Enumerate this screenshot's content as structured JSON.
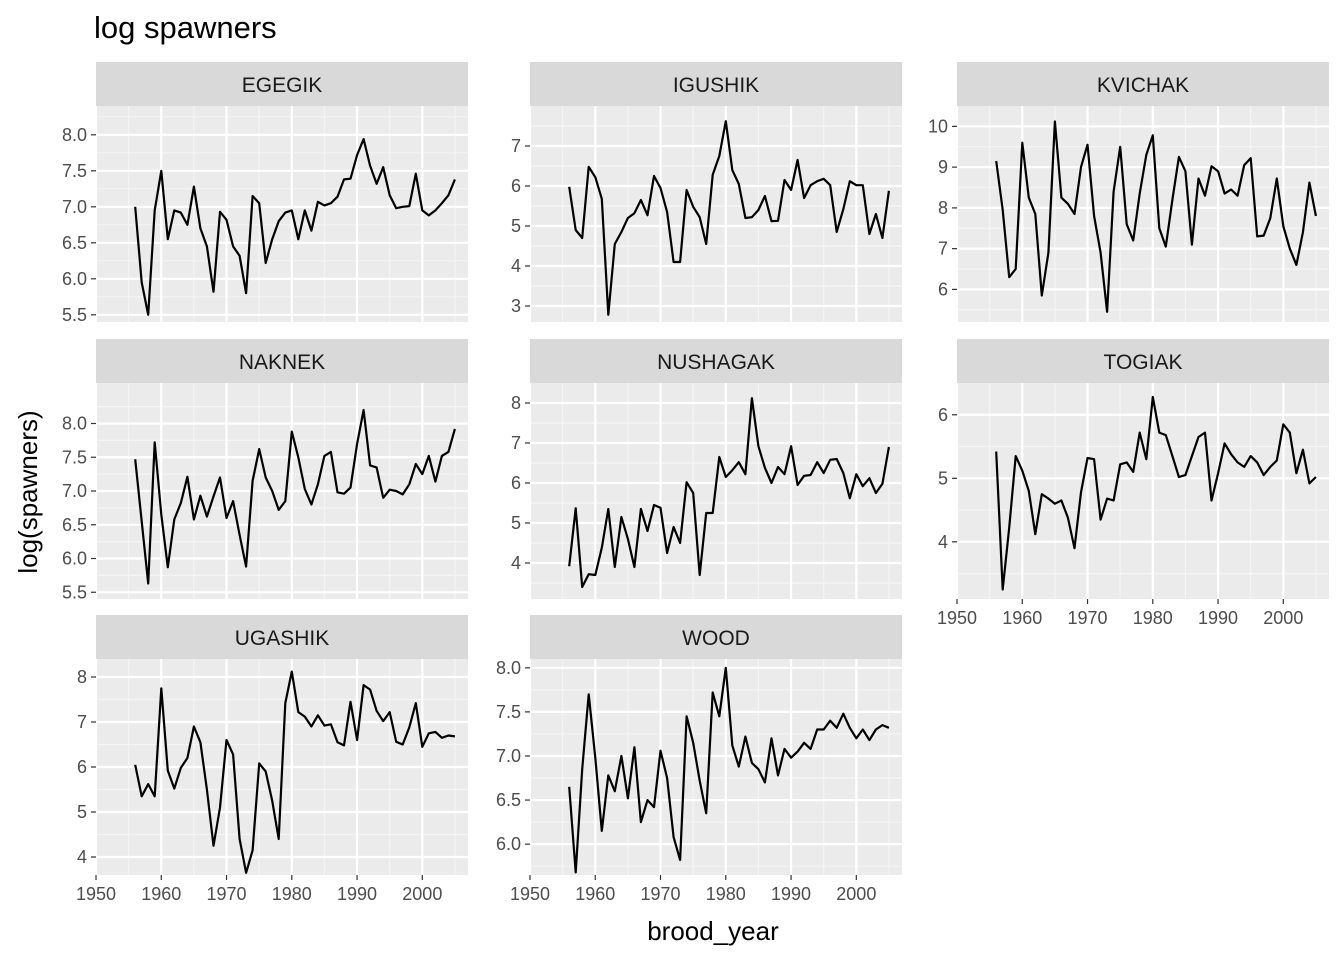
{
  "chart_data": {
    "type": "line",
    "title": "log spawners",
    "xlabel": "brood_year",
    "ylabel": "log(spawners)",
    "xlim": [
      1950,
      2007
    ],
    "x_ticks": [
      "1950",
      "1960",
      "1970",
      "1980",
      "1990",
      "2000"
    ],
    "grid": true,
    "legend": "none",
    "facets": [
      {
        "name": "EGEGIK",
        "ylim": [
          5.4,
          8.4
        ],
        "y_ticks": [
          "5.5",
          "6.0",
          "6.5",
          "7.0",
          "7.5",
          "8.0"
        ],
        "x": [
          1956,
          1957,
          1958,
          1959,
          1960,
          1961,
          1962,
          1963,
          1964,
          1965,
          1966,
          1967,
          1968,
          1969,
          1970,
          1971,
          1972,
          1973,
          1974,
          1975,
          1976,
          1977,
          1978,
          1979,
          1980,
          1981,
          1982,
          1983,
          1984,
          1985,
          1986,
          1987,
          1988,
          1989,
          1990,
          1991,
          1992,
          1993,
          1994,
          1995,
          1996,
          1997,
          1998,
          1999,
          2000,
          2001,
          2002,
          2003,
          2004,
          2005
        ],
        "y": [
          7.0,
          5.95,
          5.5,
          6.95,
          7.5,
          6.55,
          6.95,
          6.92,
          6.75,
          7.28,
          6.7,
          6.45,
          5.82,
          6.93,
          6.82,
          6.45,
          6.32,
          5.8,
          7.15,
          7.05,
          6.22,
          6.55,
          6.8,
          6.92,
          6.95,
          6.55,
          6.95,
          6.67,
          7.07,
          7.02,
          7.05,
          7.14,
          7.38,
          7.39,
          7.72,
          7.94,
          7.57,
          7.32,
          7.55,
          7.16,
          6.98,
          7.0,
          7.01,
          7.46,
          6.95,
          6.88,
          6.95,
          7.05,
          7.16,
          7.38
        ]
      },
      {
        "name": "IGUSHIK",
        "ylim": [
          2.6,
          8.0
        ],
        "y_ticks": [
          "3",
          "4",
          "5",
          "6",
          "7"
        ],
        "x": [
          1956,
          1957,
          1958,
          1959,
          1960,
          1961,
          1962,
          1963,
          1964,
          1965,
          1966,
          1967,
          1968,
          1969,
          1970,
          1971,
          1972,
          1973,
          1974,
          1975,
          1976,
          1977,
          1978,
          1979,
          1980,
          1981,
          1982,
          1983,
          1984,
          1985,
          1986,
          1987,
          1988,
          1989,
          1990,
          1991,
          1992,
          1993,
          1994,
          1995,
          1996,
          1997,
          1998,
          1999,
          2000,
          2001,
          2002,
          2003,
          2004,
          2005
        ],
        "y": [
          5.98,
          4.9,
          4.7,
          6.48,
          6.22,
          5.68,
          2.78,
          4.55,
          4.85,
          5.2,
          5.32,
          5.65,
          5.27,
          6.25,
          5.95,
          5.35,
          4.1,
          4.1,
          5.9,
          5.48,
          5.22,
          4.55,
          6.28,
          6.75,
          7.62,
          6.4,
          6.05,
          5.2,
          5.22,
          5.4,
          5.75,
          5.12,
          5.13,
          6.15,
          5.9,
          6.65,
          5.7,
          6.02,
          6.12,
          6.18,
          6.02,
          4.85,
          5.42,
          6.12,
          6.02,
          6.02,
          4.8,
          5.3,
          4.7,
          5.88
        ]
      },
      {
        "name": "KVICHAK",
        "ylim": [
          5.2,
          10.5
        ],
        "y_ticks": [
          "6",
          "7",
          "8",
          "9",
          "10"
        ],
        "x": [
          1956,
          1957,
          1958,
          1959,
          1960,
          1961,
          1962,
          1963,
          1964,
          1965,
          1966,
          1967,
          1968,
          1969,
          1970,
          1971,
          1972,
          1973,
          1974,
          1975,
          1976,
          1977,
          1978,
          1979,
          1980,
          1981,
          1982,
          1983,
          1984,
          1985,
          1986,
          1987,
          1988,
          1989,
          1990,
          1991,
          1992,
          1993,
          1994,
          1995,
          1996,
          1997,
          1998,
          1999,
          2000,
          2001,
          2002,
          2003,
          2004,
          2005
        ],
        "y": [
          9.15,
          7.95,
          6.3,
          6.5,
          9.6,
          8.25,
          7.85,
          5.85,
          6.9,
          10.12,
          8.25,
          8.1,
          7.85,
          9.0,
          9.55,
          7.8,
          6.9,
          5.45,
          8.4,
          9.5,
          7.6,
          7.2,
          8.35,
          9.3,
          9.78,
          7.5,
          7.05,
          8.2,
          9.25,
          8.9,
          7.1,
          8.72,
          8.3,
          9.02,
          8.9,
          8.35,
          8.45,
          8.3,
          9.05,
          9.22,
          7.3,
          7.32,
          7.75,
          8.72,
          7.55,
          7.0,
          6.6,
          7.4,
          8.62,
          7.8
        ]
      },
      {
        "name": "NAKNEK",
        "ylim": [
          5.4,
          8.6
        ],
        "y_ticks": [
          "5.5",
          "6.0",
          "6.5",
          "7.0",
          "7.5",
          "8.0"
        ],
        "x": [
          1956,
          1957,
          1958,
          1959,
          1960,
          1961,
          1962,
          1963,
          1964,
          1965,
          1966,
          1967,
          1968,
          1969,
          1970,
          1971,
          1972,
          1973,
          1974,
          1975,
          1976,
          1977,
          1978,
          1979,
          1980,
          1981,
          1982,
          1983,
          1984,
          1985,
          1986,
          1987,
          1988,
          1989,
          1990,
          1991,
          1992,
          1993,
          1994,
          1995,
          1996,
          1997,
          1998,
          1999,
          2000,
          2001,
          2002,
          2003,
          2004,
          2005
        ],
        "y": [
          7.47,
          6.55,
          5.63,
          7.72,
          6.65,
          5.87,
          6.58,
          6.82,
          7.21,
          6.58,
          6.93,
          6.62,
          6.92,
          7.2,
          6.6,
          6.85,
          6.35,
          5.88,
          7.15,
          7.62,
          7.2,
          7.0,
          6.72,
          6.85,
          7.88,
          7.5,
          7.03,
          6.8,
          7.1,
          7.52,
          7.58,
          6.98,
          6.96,
          7.05,
          7.7,
          8.2,
          7.38,
          7.35,
          6.9,
          7.02,
          7.0,
          6.95,
          7.1,
          7.4,
          7.25,
          7.52,
          7.14,
          7.52,
          7.58,
          7.92
        ]
      },
      {
        "name": "NUSHAGAK",
        "ylim": [
          3.1,
          8.5
        ],
        "y_ticks": [
          "4",
          "5",
          "6",
          "7",
          "8"
        ],
        "x": [
          1956,
          1957,
          1958,
          1959,
          1960,
          1961,
          1962,
          1963,
          1964,
          1965,
          1966,
          1967,
          1968,
          1969,
          1970,
          1971,
          1972,
          1973,
          1974,
          1975,
          1976,
          1977,
          1978,
          1979,
          1980,
          1981,
          1982,
          1983,
          1984,
          1985,
          1986,
          1987,
          1988,
          1989,
          1990,
          1991,
          1992,
          1993,
          1994,
          1995,
          1996,
          1997,
          1998,
          1999,
          2000,
          2001,
          2002,
          2003,
          2004,
          2005
        ],
        "y": [
          3.92,
          5.37,
          3.4,
          3.72,
          3.7,
          4.38,
          5.35,
          3.9,
          5.15,
          4.6,
          3.9,
          5.35,
          4.8,
          5.45,
          5.38,
          4.25,
          4.9,
          4.5,
          6.02,
          5.75,
          3.7,
          5.25,
          5.25,
          6.65,
          6.15,
          6.32,
          6.52,
          6.22,
          8.12,
          6.92,
          6.38,
          6.0,
          6.4,
          6.22,
          6.92,
          5.95,
          6.18,
          6.2,
          6.52,
          6.25,
          6.58,
          6.6,
          6.25,
          5.62,
          6.22,
          5.92,
          6.12,
          5.75,
          5.98,
          6.9
        ]
      },
      {
        "name": "TOGIAK",
        "ylim": [
          3.1,
          6.5
        ],
        "y_ticks": [
          "4",
          "5",
          "6"
        ],
        "x": [
          1956,
          1957,
          1958,
          1959,
          1960,
          1961,
          1962,
          1963,
          1964,
          1965,
          1966,
          1967,
          1968,
          1969,
          1970,
          1971,
          1972,
          1973,
          1974,
          1975,
          1976,
          1977,
          1978,
          1979,
          1980,
          1981,
          1982,
          1983,
          1984,
          1985,
          1986,
          1987,
          1988,
          1989,
          1990,
          1991,
          1992,
          1993,
          1994,
          1995,
          1996,
          1997,
          1998,
          1999,
          2000,
          2001,
          2002,
          2003,
          2004,
          2005
        ],
        "y": [
          5.42,
          3.25,
          4.22,
          5.35,
          5.12,
          4.8,
          4.12,
          4.75,
          4.68,
          4.6,
          4.65,
          4.38,
          3.9,
          4.78,
          5.32,
          5.3,
          4.35,
          4.68,
          4.65,
          5.22,
          5.25,
          5.1,
          5.72,
          5.3,
          6.28,
          5.72,
          5.68,
          5.35,
          5.02,
          5.05,
          5.35,
          5.65,
          5.72,
          4.65,
          5.08,
          5.55,
          5.38,
          5.25,
          5.18,
          5.35,
          5.25,
          5.05,
          5.18,
          5.28,
          5.85,
          5.72,
          5.08,
          5.45,
          4.92,
          5.02
        ]
      },
      {
        "name": "UGASHIK",
        "ylim": [
          3.6,
          8.4
        ],
        "y_ticks": [
          "4",
          "5",
          "6",
          "7",
          "8"
        ],
        "x": [
          1956,
          1957,
          1958,
          1959,
          1960,
          1961,
          1962,
          1963,
          1964,
          1965,
          1966,
          1967,
          1968,
          1969,
          1970,
          1971,
          1972,
          1973,
          1974,
          1975,
          1976,
          1977,
          1978,
          1979,
          1980,
          1981,
          1982,
          1983,
          1984,
          1985,
          1986,
          1987,
          1988,
          1989,
          1990,
          1991,
          1992,
          1993,
          1994,
          1995,
          1996,
          1997,
          1998,
          1999,
          2000,
          2001,
          2002,
          2003,
          2004,
          2005
        ],
        "y": [
          6.05,
          5.35,
          5.62,
          5.35,
          7.75,
          5.92,
          5.52,
          5.98,
          6.2,
          6.9,
          6.55,
          5.5,
          4.25,
          5.1,
          6.6,
          6.28,
          4.4,
          3.65,
          4.15,
          6.08,
          5.9,
          5.25,
          4.4,
          7.42,
          8.12,
          7.22,
          7.12,
          6.9,
          7.15,
          6.92,
          6.95,
          6.55,
          6.48,
          7.45,
          6.6,
          7.82,
          7.72,
          7.25,
          7.02,
          7.22,
          6.56,
          6.5,
          6.88,
          7.42,
          6.45,
          6.75,
          6.78,
          6.65,
          6.7,
          6.68
        ]
      },
      {
        "name": "WOOD",
        "ylim": [
          5.65,
          8.1
        ],
        "y_ticks": [
          "6.0",
          "6.5",
          "7.0",
          "7.5",
          "8.0"
        ],
        "x": [
          1956,
          1957,
          1958,
          1959,
          1960,
          1961,
          1962,
          1963,
          1964,
          1965,
          1966,
          1967,
          1968,
          1969,
          1970,
          1971,
          1972,
          1973,
          1974,
          1975,
          1976,
          1977,
          1978,
          1979,
          1980,
          1981,
          1982,
          1983,
          1984,
          1985,
          1986,
          1987,
          1988,
          1989,
          1990,
          1991,
          1992,
          1993,
          1994,
          1995,
          1996,
          1997,
          1998,
          1999,
          2000,
          2001,
          2002,
          2003,
          2004,
          2005
        ],
        "y": [
          6.65,
          5.68,
          6.85,
          7.7,
          6.98,
          6.15,
          6.78,
          6.6,
          7.0,
          6.52,
          7.1,
          6.25,
          6.5,
          6.42,
          7.06,
          6.75,
          6.08,
          5.82,
          7.45,
          7.15,
          6.72,
          6.35,
          7.72,
          7.45,
          8.0,
          7.12,
          6.88,
          7.22,
          6.92,
          6.85,
          6.7,
          7.2,
          6.78,
          7.08,
          6.98,
          7.05,
          7.15,
          7.08,
          7.3,
          7.3,
          7.4,
          7.32,
          7.48,
          7.32,
          7.2,
          7.3,
          7.18,
          7.3,
          7.35,
          7.32
        ]
      }
    ]
  }
}
